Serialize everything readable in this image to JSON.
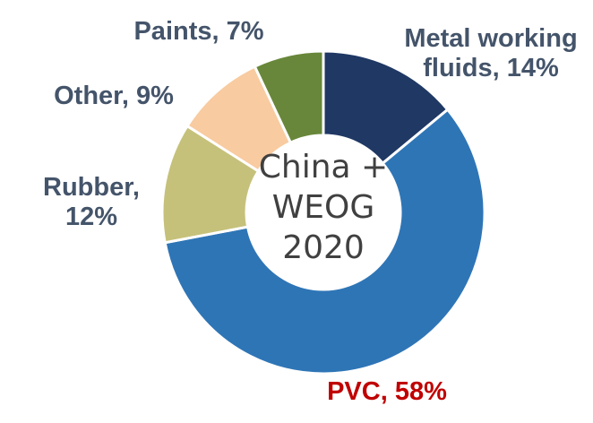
{
  "chart_data": {
    "type": "pie",
    "donut": true,
    "center_text": [
      "China +",
      "WEOG",
      "2020"
    ],
    "slices": [
      {
        "label_lines": [
          "Metal working",
          "fluids, 14%"
        ],
        "value": 14,
        "color": "#1f3864",
        "label_color": "#44546a"
      },
      {
        "label_lines": [
          "PVC, 58%"
        ],
        "value": 58,
        "color": "#2e75b6",
        "label_color": "#c00000"
      },
      {
        "label_lines": [
          "Rubber,",
          "12%"
        ],
        "value": 12,
        "color": "#c5c17a",
        "label_color": "#44546a"
      },
      {
        "label_lines": [
          "Other, 9%"
        ],
        "value": 9,
        "color": "#f8cba0",
        "label_color": "#44546a"
      },
      {
        "label_lines": [
          "Paints, 7%"
        ],
        "value": 7,
        "color": "#68873a",
        "label_color": "#44546a"
      }
    ]
  }
}
